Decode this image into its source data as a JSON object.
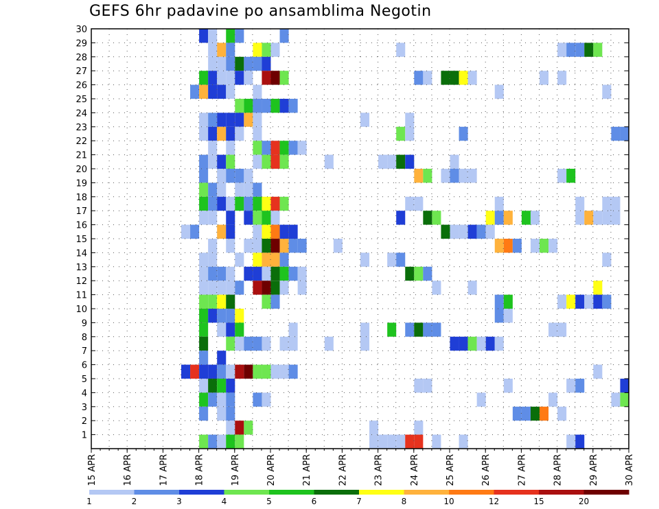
{
  "chart_data": {
    "type": "heatmap",
    "title": "GEFS 6hr padavine po ansamblima Negotin",
    "x_tick_labels": [
      "15 APR",
      "16 APR",
      "17 APR",
      "18 APR",
      "19 APR",
      "20 APR",
      "21 APR",
      "22 APR",
      "23 APR",
      "24 APR",
      "25 APR",
      "26 APR",
      "27 APR",
      "28 APR",
      "29 APR",
      "30 APR"
    ],
    "y_tick_labels": [
      "1",
      "2",
      "3",
      "4",
      "5",
      "6",
      "7",
      "8",
      "9",
      "10",
      "11",
      "12",
      "13",
      "14",
      "15",
      "16",
      "17",
      "18",
      "19",
      "20",
      "21",
      "22",
      "23",
      "24",
      "25",
      "26",
      "27",
      "28",
      "29",
      "30"
    ],
    "x_range": [
      0,
      60
    ],
    "y_range": [
      0,
      30
    ],
    "grid": true,
    "colorbar": {
      "labels": [
        "1",
        "2",
        "3",
        "4",
        "5",
        "6",
        "7",
        "8",
        "10",
        "12",
        "15",
        "20"
      ],
      "colors": [
        "#b4c8f4",
        "#5f8de6",
        "#1f3ed6",
        "#6ee650",
        "#1ec31e",
        "#0a6e0a",
        "#ffff14",
        "#ffb23c",
        "#ff7a14",
        "#e6321e",
        "#aa0f0f",
        "#6e0000"
      ]
    },
    "cells": [
      [
        13,
        30,
        2
      ],
      [
        14,
        30,
        0
      ],
      [
        16,
        30,
        4
      ],
      [
        17,
        30,
        1
      ],
      [
        22,
        30,
        1
      ],
      [
        14,
        29,
        0
      ],
      [
        15,
        29,
        7
      ],
      [
        16,
        29,
        1
      ],
      [
        19,
        29,
        6
      ],
      [
        20,
        29,
        3
      ],
      [
        21,
        29,
        0
      ],
      [
        35,
        29,
        0
      ],
      [
        53,
        29,
        0
      ],
      [
        54,
        29,
        1
      ],
      [
        55,
        29,
        1
      ],
      [
        56,
        29,
        5
      ],
      [
        57,
        29,
        3
      ],
      [
        14,
        28,
        0
      ],
      [
        15,
        28,
        0
      ],
      [
        16,
        28,
        1
      ],
      [
        17,
        28,
        5
      ],
      [
        18,
        28,
        1
      ],
      [
        19,
        28,
        1
      ],
      [
        20,
        28,
        2
      ],
      [
        13,
        27,
        4
      ],
      [
        14,
        27,
        2
      ],
      [
        15,
        27,
        0
      ],
      [
        16,
        27,
        0
      ],
      [
        17,
        27,
        2
      ],
      [
        18,
        27,
        0
      ],
      [
        20,
        27,
        10
      ],
      [
        21,
        27,
        11
      ],
      [
        22,
        27,
        3
      ],
      [
        37,
        27,
        1
      ],
      [
        38,
        27,
        0
      ],
      [
        40,
        27,
        5
      ],
      [
        41,
        27,
        5
      ],
      [
        42,
        27,
        6
      ],
      [
        43,
        27,
        0
      ],
      [
        51,
        27,
        0
      ],
      [
        53,
        27,
        0
      ],
      [
        12,
        26,
        1
      ],
      [
        13,
        26,
        7
      ],
      [
        14,
        26,
        2
      ],
      [
        15,
        26,
        2
      ],
      [
        16,
        26,
        0
      ],
      [
        19,
        26,
        0
      ],
      [
        46,
        26,
        0
      ],
      [
        58,
        26,
        0
      ],
      [
        17,
        25,
        3
      ],
      [
        18,
        25,
        4
      ],
      [
        19,
        25,
        1
      ],
      [
        20,
        25,
        1
      ],
      [
        21,
        25,
        4
      ],
      [
        22,
        25,
        2
      ],
      [
        23,
        25,
        1
      ],
      [
        13,
        24,
        0
      ],
      [
        14,
        24,
        1
      ],
      [
        15,
        24,
        2
      ],
      [
        16,
        24,
        2
      ],
      [
        17,
        24,
        2
      ],
      [
        18,
        24,
        7
      ],
      [
        19,
        24,
        0
      ],
      [
        31,
        24,
        0
      ],
      [
        36,
        24,
        0
      ],
      [
        13,
        23,
        0
      ],
      [
        14,
        23,
        2
      ],
      [
        15,
        23,
        7
      ],
      [
        16,
        23,
        2
      ],
      [
        17,
        23,
        0
      ],
      [
        19,
        23,
        0
      ],
      [
        35,
        23,
        3
      ],
      [
        36,
        23,
        0
      ],
      [
        42,
        23,
        1
      ],
      [
        59,
        23,
        1
      ],
      [
        60,
        23,
        1
      ],
      [
        14,
        22,
        0
      ],
      [
        16,
        22,
        0
      ],
      [
        19,
        22,
        3
      ],
      [
        20,
        22,
        1
      ],
      [
        21,
        22,
        9
      ],
      [
        22,
        22,
        4
      ],
      [
        23,
        22,
        1
      ],
      [
        24,
        22,
        0
      ],
      [
        13,
        21,
        1
      ],
      [
        14,
        21,
        0
      ],
      [
        15,
        21,
        2
      ],
      [
        16,
        21,
        3
      ],
      [
        19,
        21,
        0
      ],
      [
        20,
        21,
        3
      ],
      [
        21,
        21,
        9
      ],
      [
        22,
        21,
        3
      ],
      [
        27,
        21,
        0
      ],
      [
        33,
        21,
        0
      ],
      [
        34,
        21,
        0
      ],
      [
        35,
        21,
        5
      ],
      [
        36,
        21,
        2
      ],
      [
        41,
        21,
        0
      ],
      [
        13,
        20,
        1
      ],
      [
        15,
        20,
        0
      ],
      [
        16,
        20,
        1
      ],
      [
        17,
        20,
        1
      ],
      [
        18,
        20,
        0
      ],
      [
        37,
        20,
        7
      ],
      [
        38,
        20,
        3
      ],
      [
        40,
        20,
        0
      ],
      [
        41,
        20,
        1
      ],
      [
        42,
        20,
        0
      ],
      [
        43,
        20,
        0
      ],
      [
        53,
        20,
        0
      ],
      [
        54,
        20,
        4
      ],
      [
        13,
        19,
        3
      ],
      [
        14,
        19,
        1
      ],
      [
        15,
        19,
        0
      ],
      [
        17,
        19,
        0
      ],
      [
        18,
        19,
        0
      ],
      [
        19,
        19,
        1
      ],
      [
        13,
        18,
        4
      ],
      [
        14,
        18,
        1
      ],
      [
        15,
        18,
        2
      ],
      [
        16,
        18,
        0
      ],
      [
        17,
        18,
        4
      ],
      [
        18,
        18,
        1
      ],
      [
        19,
        18,
        4
      ],
      [
        20,
        18,
        6
      ],
      [
        21,
        18,
        9
      ],
      [
        22,
        18,
        3
      ],
      [
        36,
        18,
        0
      ],
      [
        37,
        18,
        0
      ],
      [
        46,
        18,
        0
      ],
      [
        55,
        18,
        0
      ],
      [
        58,
        18,
        0
      ],
      [
        59,
        18,
        0
      ],
      [
        13,
        17,
        0
      ],
      [
        14,
        17,
        0
      ],
      [
        16,
        17,
        2
      ],
      [
        18,
        17,
        2
      ],
      [
        19,
        17,
        3
      ],
      [
        20,
        17,
        4
      ],
      [
        21,
        17,
        0
      ],
      [
        35,
        17,
        2
      ],
      [
        38,
        17,
        5
      ],
      [
        39,
        17,
        3
      ],
      [
        45,
        17,
        6
      ],
      [
        46,
        17,
        1
      ],
      [
        47,
        17,
        7
      ],
      [
        49,
        17,
        4
      ],
      [
        50,
        17,
        0
      ],
      [
        55,
        17,
        0
      ],
      [
        56,
        17,
        7
      ],
      [
        57,
        17,
        0
      ],
      [
        58,
        17,
        0
      ],
      [
        59,
        17,
        0
      ],
      [
        11,
        16,
        0
      ],
      [
        12,
        16,
        1
      ],
      [
        15,
        16,
        7
      ],
      [
        16,
        16,
        2
      ],
      [
        19,
        16,
        0
      ],
      [
        20,
        16,
        6
      ],
      [
        21,
        16,
        8
      ],
      [
        22,
        16,
        2
      ],
      [
        23,
        16,
        2
      ],
      [
        40,
        16,
        5
      ],
      [
        41,
        16,
        0
      ],
      [
        42,
        16,
        0
      ],
      [
        43,
        16,
        2
      ],
      [
        44,
        16,
        1
      ],
      [
        45,
        16,
        0
      ],
      [
        14,
        15,
        0
      ],
      [
        16,
        15,
        0
      ],
      [
        18,
        15,
        0
      ],
      [
        19,
        15,
        0
      ],
      [
        20,
        15,
        5
      ],
      [
        21,
        15,
        11
      ],
      [
        22,
        15,
        7
      ],
      [
        23,
        15,
        1
      ],
      [
        24,
        15,
        1
      ],
      [
        28,
        15,
        0
      ],
      [
        46,
        15,
        7
      ],
      [
        47,
        15,
        8
      ],
      [
        48,
        15,
        1
      ],
      [
        50,
        15,
        0
      ],
      [
        51,
        15,
        3
      ],
      [
        52,
        15,
        0
      ],
      [
        13,
        14,
        0
      ],
      [
        14,
        14,
        0
      ],
      [
        17,
        14,
        0
      ],
      [
        19,
        14,
        6
      ],
      [
        20,
        14,
        7
      ],
      [
        21,
        14,
        7
      ],
      [
        22,
        14,
        1
      ],
      [
        31,
        14,
        0
      ],
      [
        34,
        14,
        0
      ],
      [
        35,
        14,
        1
      ],
      [
        58,
        14,
        0
      ],
      [
        13,
        13,
        0
      ],
      [
        14,
        13,
        1
      ],
      [
        15,
        13,
        1
      ],
      [
        16,
        13,
        0
      ],
      [
        18,
        13,
        2
      ],
      [
        19,
        13,
        2
      ],
      [
        20,
        13,
        0
      ],
      [
        21,
        13,
        5
      ],
      [
        22,
        13,
        4
      ],
      [
        23,
        13,
        1
      ],
      [
        24,
        13,
        0
      ],
      [
        36,
        13,
        5
      ],
      [
        37,
        13,
        3
      ],
      [
        38,
        13,
        1
      ],
      [
        13,
        12,
        0
      ],
      [
        14,
        12,
        0
      ],
      [
        15,
        12,
        0
      ],
      [
        16,
        12,
        0
      ],
      [
        17,
        12,
        1
      ],
      [
        19,
        12,
        10
      ],
      [
        20,
        12,
        11
      ],
      [
        21,
        12,
        5
      ],
      [
        22,
        12,
        0
      ],
      [
        24,
        12,
        0
      ],
      [
        39,
        12,
        0
      ],
      [
        43,
        12,
        0
      ],
      [
        57,
        12,
        6
      ],
      [
        13,
        11,
        3
      ],
      [
        14,
        11,
        3
      ],
      [
        15,
        11,
        6
      ],
      [
        16,
        11,
        5
      ],
      [
        20,
        11,
        3
      ],
      [
        21,
        11,
        1
      ],
      [
        46,
        11,
        1
      ],
      [
        47,
        11,
        4
      ],
      [
        53,
        11,
        0
      ],
      [
        54,
        11,
        6
      ],
      [
        55,
        11,
        2
      ],
      [
        56,
        11,
        0
      ],
      [
        57,
        11,
        2
      ],
      [
        58,
        11,
        1
      ],
      [
        13,
        10,
        4
      ],
      [
        14,
        10,
        2
      ],
      [
        15,
        10,
        1
      ],
      [
        16,
        10,
        1
      ],
      [
        17,
        10,
        6
      ],
      [
        46,
        10,
        1
      ],
      [
        47,
        10,
        0
      ],
      [
        13,
        9,
        4
      ],
      [
        15,
        9,
        0
      ],
      [
        16,
        9,
        2
      ],
      [
        17,
        9,
        4
      ],
      [
        23,
        9,
        0
      ],
      [
        31,
        9,
        0
      ],
      [
        34,
        9,
        4
      ],
      [
        36,
        9,
        1
      ],
      [
        37,
        9,
        5
      ],
      [
        38,
        9,
        1
      ],
      [
        39,
        9,
        1
      ],
      [
        52,
        9,
        0
      ],
      [
        53,
        9,
        0
      ],
      [
        13,
        8,
        5
      ],
      [
        16,
        8,
        3
      ],
      [
        17,
        8,
        0
      ],
      [
        18,
        8,
        1
      ],
      [
        19,
        8,
        1
      ],
      [
        20,
        8,
        0
      ],
      [
        22,
        8,
        0
      ],
      [
        23,
        8,
        0
      ],
      [
        27,
        8,
        0
      ],
      [
        31,
        8,
        0
      ],
      [
        41,
        8,
        2
      ],
      [
        42,
        8,
        2
      ],
      [
        43,
        8,
        3
      ],
      [
        44,
        8,
        0
      ],
      [
        45,
        8,
        2
      ],
      [
        46,
        8,
        0
      ],
      [
        13,
        7,
        1
      ],
      [
        15,
        7,
        2
      ],
      [
        11,
        6,
        2
      ],
      [
        12,
        6,
        9
      ],
      [
        13,
        6,
        2
      ],
      [
        14,
        6,
        2
      ],
      [
        15,
        6,
        1
      ],
      [
        16,
        6,
        0
      ],
      [
        17,
        6,
        10
      ],
      [
        18,
        6,
        11
      ],
      [
        19,
        6,
        3
      ],
      [
        20,
        6,
        3
      ],
      [
        21,
        6,
        0
      ],
      [
        22,
        6,
        0
      ],
      [
        23,
        6,
        1
      ],
      [
        57,
        6,
        0
      ],
      [
        13,
        5,
        0
      ],
      [
        14,
        5,
        5
      ],
      [
        15,
        5,
        4
      ],
      [
        16,
        5,
        2
      ],
      [
        37,
        5,
        0
      ],
      [
        38,
        5,
        0
      ],
      [
        47,
        5,
        0
      ],
      [
        54,
        5,
        0
      ],
      [
        55,
        5,
        1
      ],
      [
        60,
        5,
        2
      ],
      [
        13,
        4,
        4
      ],
      [
        14,
        4,
        1
      ],
      [
        15,
        4,
        0
      ],
      [
        16,
        4,
        1
      ],
      [
        19,
        4,
        1
      ],
      [
        20,
        4,
        0
      ],
      [
        44,
        4,
        0
      ],
      [
        52,
        4,
        0
      ],
      [
        59,
        4,
        0
      ],
      [
        60,
        4,
        3
      ],
      [
        13,
        3,
        1
      ],
      [
        15,
        3,
        0
      ],
      [
        16,
        3,
        1
      ],
      [
        48,
        3,
        1
      ],
      [
        49,
        3,
        1
      ],
      [
        50,
        3,
        5
      ],
      [
        51,
        3,
        8
      ],
      [
        53,
        3,
        0
      ],
      [
        16,
        2,
        0
      ],
      [
        17,
        2,
        10
      ],
      [
        18,
        2,
        3
      ],
      [
        32,
        2,
        0
      ],
      [
        37,
        2,
        0
      ],
      [
        13,
        1,
        3
      ],
      [
        14,
        1,
        1
      ],
      [
        15,
        1,
        0
      ],
      [
        16,
        1,
        4
      ],
      [
        17,
        1,
        3
      ],
      [
        32,
        1,
        0
      ],
      [
        33,
        1,
        0
      ],
      [
        34,
        1,
        0
      ],
      [
        35,
        1,
        0
      ],
      [
        36,
        1,
        9
      ],
      [
        37,
        1,
        9
      ],
      [
        39,
        1,
        0
      ],
      [
        42,
        1,
        0
      ],
      [
        54,
        1,
        0
      ],
      [
        55,
        1,
        2
      ]
    ]
  }
}
